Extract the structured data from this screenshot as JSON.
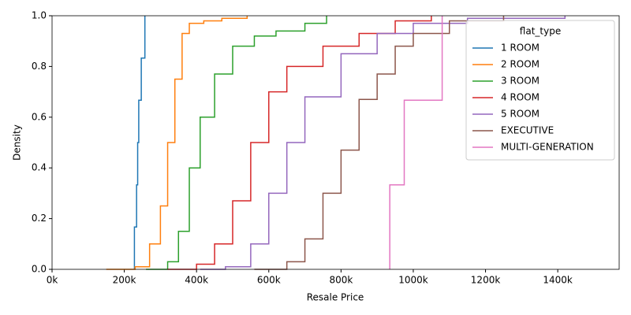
{
  "chart_data": {
    "type": "ecdf",
    "x_label": "Resale Price",
    "y_label": "Density",
    "legend_title": "flat_type",
    "legend": "upper right",
    "xlim": [
      0,
      1570000
    ],
    "ylim": [
      0,
      1
    ],
    "xticks": [
      {
        "value": 0,
        "label": "0k"
      },
      {
        "value": 200000,
        "label": "200k"
      },
      {
        "value": 400000,
        "label": "400k"
      },
      {
        "value": 600000,
        "label": "600k"
      },
      {
        "value": 800000,
        "label": "800k"
      },
      {
        "value": 1000000,
        "label": "1000k"
      },
      {
        "value": 1200000,
        "label": "1200k"
      },
      {
        "value": 1400000,
        "label": "1400k"
      }
    ],
    "yticks": [
      {
        "value": 0,
        "label": "0.0"
      },
      0.2,
      0.4,
      0.6,
      0.8,
      {
        "value": 1,
        "label": "1.0"
      }
    ],
    "series": [
      {
        "name": "1 ROOM",
        "color": "#1f77b4",
        "x": [
          228000,
          234000,
          237000,
          240000,
          247000,
          257000
        ],
        "values": [
          0.167,
          0.333,
          0.5,
          0.667,
          0.833,
          1.0
        ]
      },
      {
        "name": "2 ROOM",
        "color": "#ff7f0e",
        "x": [
          150000,
          230000,
          270000,
          300000,
          320000,
          340000,
          360000,
          380000,
          420000,
          470000,
          540000
        ],
        "values": [
          0,
          0.01,
          0.1,
          0.25,
          0.5,
          0.75,
          0.93,
          0.97,
          0.98,
          0.99,
          1.0
        ]
      },
      {
        "name": "3 ROOM",
        "color": "#2ca02c",
        "x": [
          260000,
          320000,
          350000,
          380000,
          410000,
          450000,
          500000,
          560000,
          620000,
          700000,
          760000
        ],
        "values": [
          0,
          0.03,
          0.15,
          0.4,
          0.6,
          0.77,
          0.88,
          0.92,
          0.94,
          0.97,
          1.0
        ]
      },
      {
        "name": "4 ROOM",
        "color": "#d62728",
        "x": [
          320000,
          400000,
          450000,
          500000,
          550000,
          600000,
          650000,
          750000,
          850000,
          950000,
          1050000
        ],
        "values": [
          0,
          0.02,
          0.1,
          0.27,
          0.5,
          0.7,
          0.8,
          0.88,
          0.93,
          0.98,
          1.0
        ]
      },
      {
        "name": "5 ROOM",
        "color": "#9467bd",
        "x": [
          410000,
          480000,
          550000,
          600000,
          650000,
          700000,
          800000,
          900000,
          1000000,
          1150000,
          1420000
        ],
        "values": [
          0,
          0.01,
          0.1,
          0.3,
          0.5,
          0.68,
          0.85,
          0.93,
          0.97,
          0.99,
          1.0
        ]
      },
      {
        "name": "EXECUTIVE",
        "color": "#8c564b",
        "x": [
          560000,
          650000,
          700000,
          750000,
          800000,
          850000,
          900000,
          950000,
          1000000,
          1100000,
          1250000
        ],
        "values": [
          0,
          0.03,
          0.12,
          0.3,
          0.47,
          0.67,
          0.77,
          0.88,
          0.93,
          0.98,
          1.0
        ]
      },
      {
        "name": "MULTI-GENERATION",
        "color": "#e377c2",
        "x": [
          935000,
          975000,
          1080000
        ],
        "values": [
          0.333,
          0.667,
          1.0
        ]
      }
    ]
  }
}
